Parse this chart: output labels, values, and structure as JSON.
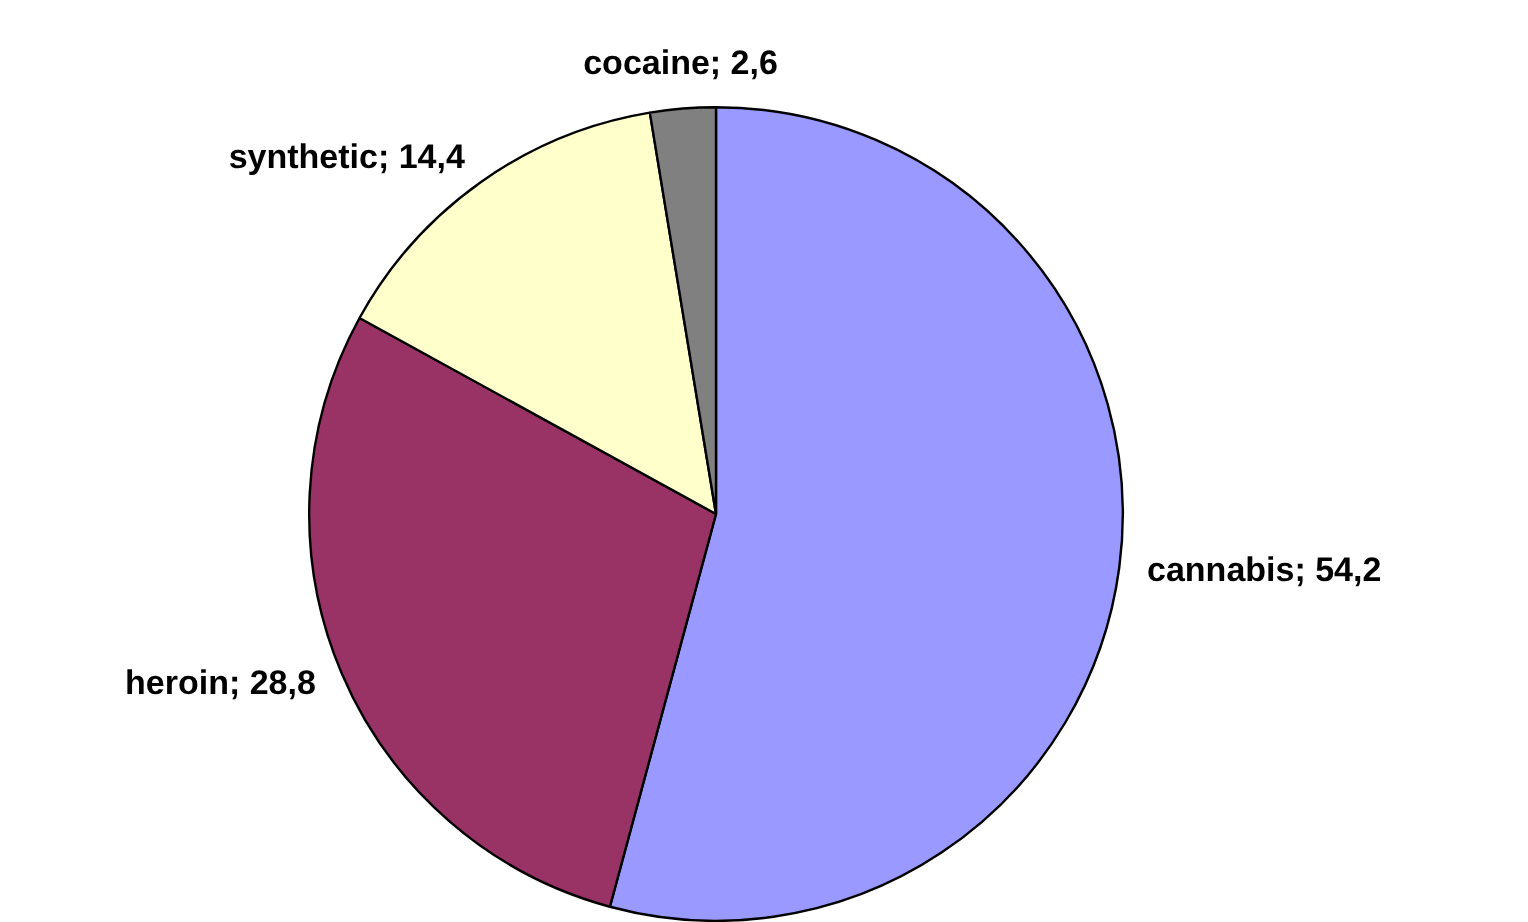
{
  "chart_data": {
    "type": "pie",
    "categories": [
      "cannabis",
      "heroin",
      "synthetic",
      "cocaine"
    ],
    "values": [
      54.2,
      28.8,
      14.4,
      2.6
    ],
    "value_labels": [
      "54,2",
      "28,8",
      "14,4",
      "2,6"
    ],
    "colors": [
      "#9999ff",
      "#993366",
      "#ffffcc",
      "#808080"
    ],
    "legend": false
  }
}
